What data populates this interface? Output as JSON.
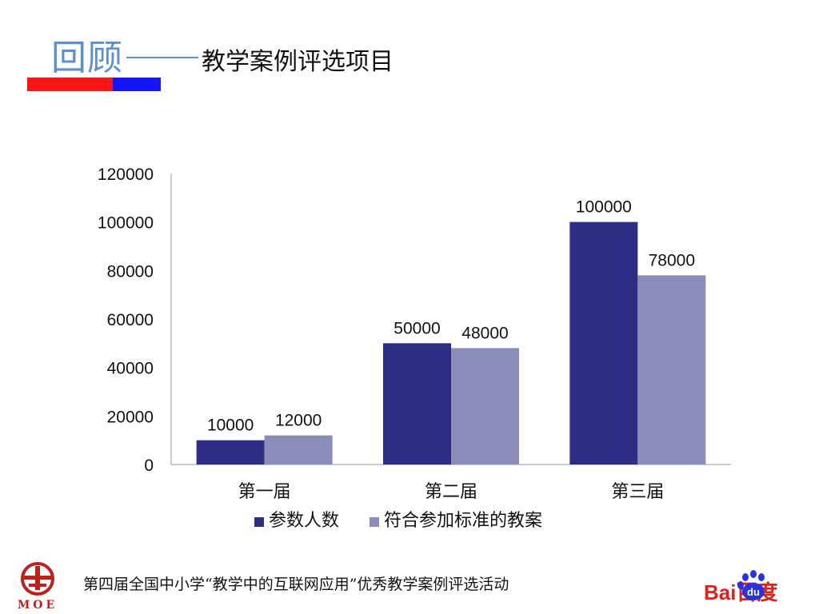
{
  "header": {
    "title_main": "回顾",
    "title_sub": "教学案例评选项目"
  },
  "chart_data": {
    "type": "bar",
    "categories": [
      "第一届",
      "第二届",
      "第三届"
    ],
    "series": [
      {
        "name": "参数人数",
        "values": [
          10000,
          50000,
          100000
        ],
        "color": "#2e2d86"
      },
      {
        "name": "符合参加标准的教案",
        "values": [
          12000,
          48000,
          78000
        ],
        "color": "#8c8cba"
      }
    ],
    "data_labels": [
      [
        "10000",
        "50000",
        "100000"
      ],
      [
        "12000",
        "48000",
        "78000"
      ]
    ],
    "ylim": [
      0,
      120000
    ],
    "yticks": [
      "0",
      "20000",
      "40000",
      "60000",
      "80000",
      "100000",
      "120000"
    ],
    "legend_placement": "bottom",
    "grid": false
  },
  "footer": {
    "text": "第四届全国中小学“教学中的互联网应用”优秀教学案例评选活动"
  },
  "logos": {
    "moe_text": "MOE",
    "baidu_text": "Bai百度",
    "baidu_paw_text": "du"
  }
}
